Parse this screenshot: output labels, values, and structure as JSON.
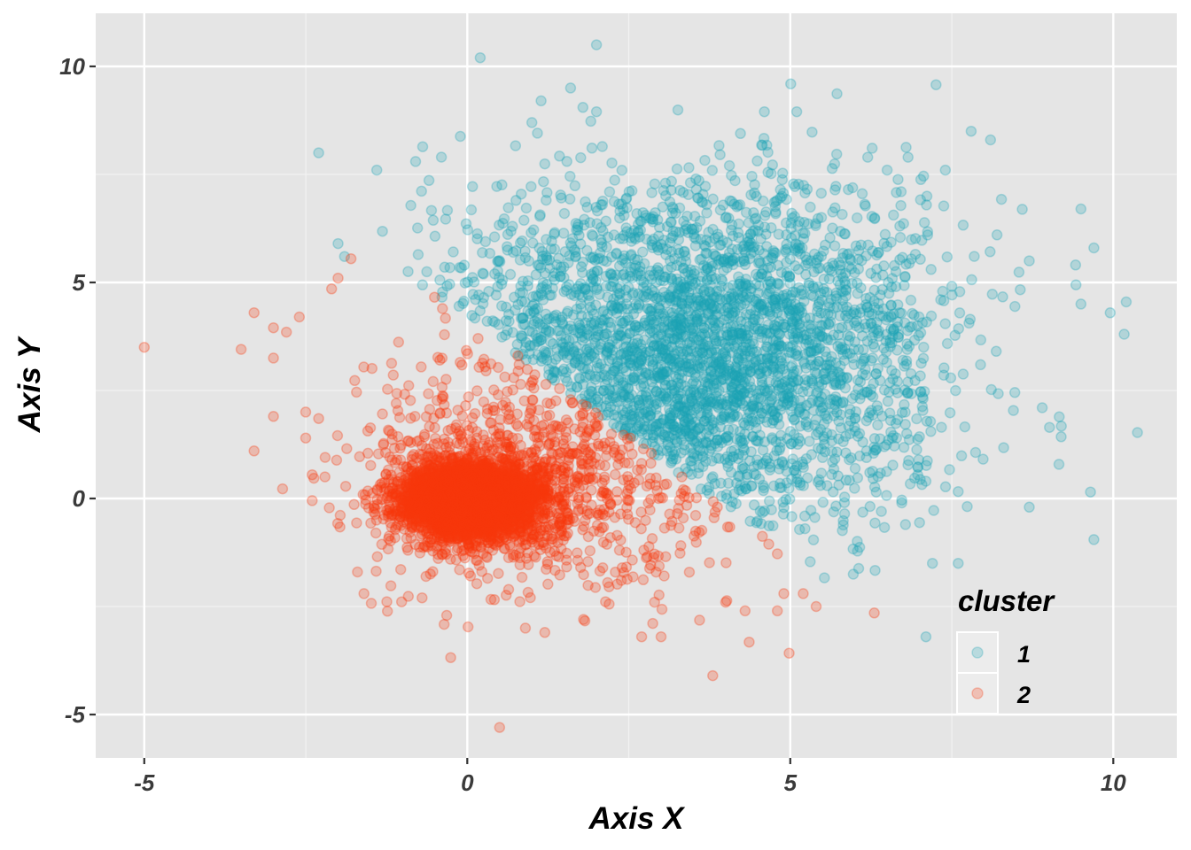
{
  "chart_data": {
    "type": "scatter",
    "title": "",
    "xlabel": "Axis X",
    "ylabel": "Axis Y",
    "xlim": [
      -6.0,
      11.0
    ],
    "ylim": [
      -5.9,
      11.3
    ],
    "x_ticks": [
      -5,
      0,
      5,
      10
    ],
    "y_ticks": [
      -5,
      0,
      5,
      10
    ],
    "x_tick_labels": [
      "-5",
      "0",
      "5",
      "10"
    ],
    "y_tick_labels": [
      "-5",
      "0",
      "5",
      "10"
    ],
    "grid": true,
    "panel_background": "#e5e5e5",
    "legend": {
      "title": "cluster",
      "position": "inside-bottom-right",
      "entries": [
        {
          "label": "1",
          "color": "#1ba3b5"
        },
        {
          "label": "2",
          "color": "#f8390d"
        }
      ]
    },
    "series": [
      {
        "name": "1",
        "color": "#1ba3b5",
        "alpha": 0.25,
        "description": "broad cloud centered near (3.5, 3.5), bounded below-left by the diagonal boundary y ≈ 3.5 - 0.6x",
        "generator": {
          "n": 3200,
          "mx": 3.6,
          "my": 3.4,
          "sx": 2.0,
          "sy": 2.0,
          "seed": 11
        },
        "outliers": [
          [
            0.2,
            10.2
          ],
          [
            2.0,
            10.5
          ],
          [
            1.6,
            9.5
          ],
          [
            2.0,
            8.95
          ],
          [
            1.0,
            8.7
          ],
          [
            -2.3,
            8.0
          ],
          [
            4.6,
            8.95
          ],
          [
            5.1,
            8.95
          ],
          [
            6.5,
            7.6
          ],
          [
            7.8,
            8.5
          ],
          [
            8.1,
            8.3
          ],
          [
            7.4,
            7.6
          ],
          [
            9.5,
            6.7
          ],
          [
            9.7,
            5.8
          ],
          [
            10.2,
            4.55
          ],
          [
            9.5,
            4.5
          ],
          [
            8.9,
            2.1
          ],
          [
            9.7,
            -0.95
          ],
          [
            8.7,
            -0.2
          ],
          [
            7.2,
            -1.5
          ],
          [
            7.6,
            -1.5
          ],
          [
            7.1,
            -3.2
          ],
          [
            8.2,
            6.1
          ],
          [
            8.7,
            5.5
          ],
          [
            -1.4,
            7.6
          ],
          [
            -0.8,
            7.8
          ],
          [
            -1.9,
            5.6
          ],
          [
            -2.0,
            5.9
          ],
          [
            -0.4,
            7.9
          ]
        ]
      },
      {
        "name": "2",
        "color": "#f8390d",
        "alpha": 0.25,
        "description": "dense core centered near (0, 0) plus sparse wedge toward lower right",
        "generator": {
          "n_core": 3500,
          "core_mx": 0.05,
          "core_my": -0.05,
          "core_sx": 0.55,
          "core_sy": 0.45,
          "n_spread": 900,
          "spread_mx": 1.2,
          "spread_my": 0.6,
          "spread_sx": 1.6,
          "spread_sy": 1.6,
          "seed": 29
        },
        "outliers": [
          [
            -5.0,
            3.5
          ],
          [
            -3.5,
            3.45
          ],
          [
            -3.3,
            4.3
          ],
          [
            -3.0,
            3.95
          ],
          [
            -2.8,
            3.85
          ],
          [
            -2.6,
            4.2
          ],
          [
            -3.0,
            3.25
          ],
          [
            -2.0,
            5.1
          ],
          [
            -1.8,
            5.55
          ],
          [
            -2.1,
            4.85
          ],
          [
            -3.0,
            1.9
          ],
          [
            -2.5,
            2.0
          ],
          [
            -2.3,
            1.85
          ],
          [
            -3.3,
            1.1
          ],
          [
            -2.5,
            1.4
          ],
          [
            -2.4,
            0.55
          ],
          [
            -2.2,
            0.95
          ],
          [
            -1.7,
            -1.7
          ],
          [
            -1.6,
            -2.2
          ],
          [
            -0.7,
            -2.3
          ],
          [
            0.5,
            -5.3
          ],
          [
            3.8,
            -4.1
          ],
          [
            3.0,
            -3.2
          ],
          [
            2.7,
            -3.2
          ],
          [
            1.2,
            -3.1
          ],
          [
            6.3,
            -2.65
          ],
          [
            5.4,
            -2.5
          ],
          [
            4.8,
            -2.6
          ],
          [
            4.9,
            -2.2
          ],
          [
            5.2,
            -2.2
          ],
          [
            4.0,
            -2.4
          ],
          [
            4.3,
            -2.6
          ],
          [
            1.8,
            -2.8
          ],
          [
            0.9,
            -3.0
          ],
          [
            2.9,
            -2.4
          ]
        ]
      }
    ]
  },
  "axes": {
    "x_title": "Axis X",
    "y_title": "Axis Y"
  },
  "legend": {
    "title": "cluster",
    "items": [
      {
        "label": "1",
        "color": "#1ba3b5"
      },
      {
        "label": "2",
        "color": "#f8390d"
      }
    ]
  }
}
